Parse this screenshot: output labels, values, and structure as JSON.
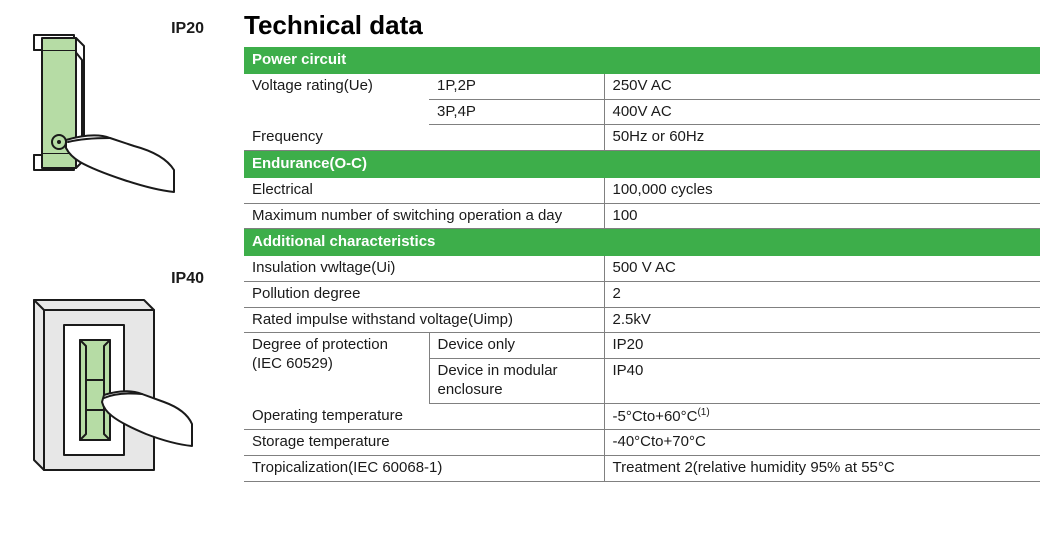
{
  "title": "Technical data",
  "ip20_label": "IP20",
  "ip40_label": "IP40",
  "colors": {
    "section_bg": "#3dae4a",
    "section_fg": "#ffffff",
    "rule": "#808080",
    "text": "#1a1a1a",
    "device_fill": "#b6dca5",
    "device_stroke": "#1a1a1a",
    "panel_fill": "#e7e7e7"
  },
  "sections": [
    {
      "header": "Power circuit",
      "rows": [
        {
          "label": "Voltage rating(Ue)",
          "sub": "1P,2P",
          "value": "250V AC",
          "label_rowspan": true
        },
        {
          "label": "",
          "sub": "3P,4P",
          "value": "400V AC"
        },
        {
          "label": "Frequency",
          "sub": "",
          "value": "50Hz or 60Hz",
          "label_span2": true
        }
      ]
    },
    {
      "header": "Endurance(O-C)",
      "rows": [
        {
          "label": "Electrical",
          "sub": "",
          "value": "100,000 cycles",
          "label_span2": true
        },
        {
          "label": "Maximum number of switching operation a day",
          "sub": "",
          "value": "100",
          "label_span2": true
        }
      ]
    },
    {
      "header": "Additional characteristics",
      "rows": [
        {
          "label": "Insulation vwltage(Ui)",
          "sub": "",
          "value": "500 V AC",
          "label_span2": true
        },
        {
          "label": "Pollution degree",
          "sub": "",
          "value": "2",
          "label_span2": true
        },
        {
          "label": "Rated impulse withstand voltage(Uimp)",
          "sub": "",
          "value": "2.5kV",
          "label_span2": true
        },
        {
          "label": "Degree of protection (IEC 60529)",
          "sub": "Device only",
          "value": "IP20",
          "label_rowspan": true
        },
        {
          "label": "",
          "sub": "Device in modular enclosure",
          "value": "IP40"
        },
        {
          "label": "Operating temperature",
          "sub": "",
          "value": "-5°Cto+60°C(1)",
          "label_span2": true,
          "footnote": true
        },
        {
          "label": "Storage temperature",
          "sub": "",
          "value": "-40°Cto+70°C",
          "label_span2": true
        },
        {
          "label": "Tropicalization(IEC 60068-1)",
          "sub": "",
          "value": "Treatment 2(relative humidity 95% at 55°C",
          "label_span2": true
        }
      ]
    }
  ]
}
